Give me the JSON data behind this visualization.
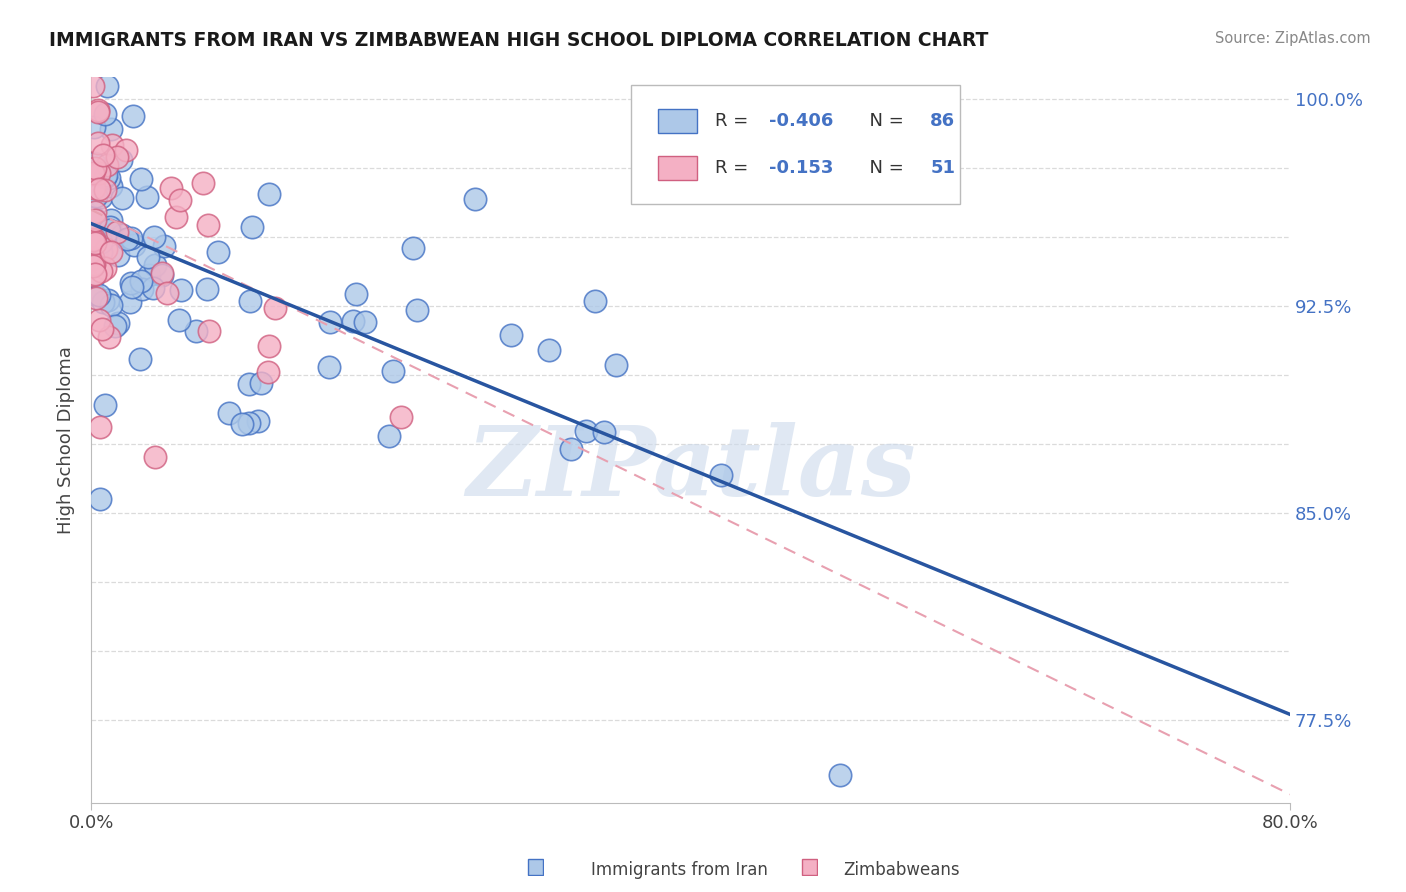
{
  "title": "IMMIGRANTS FROM IRAN VS ZIMBABWEAN HIGH SCHOOL DIPLOMA CORRELATION CHART",
  "source": "Source: ZipAtlas.com",
  "ylabel": "High School Diploma",
  "xlim": [
    0.0,
    0.8
  ],
  "ylim": [
    0.745,
    1.008
  ],
  "yticks": [
    0.775,
    0.8,
    0.825,
    0.85,
    0.875,
    0.9,
    0.925,
    0.95,
    0.975,
    1.0
  ],
  "ytick_labels": [
    "77.5%",
    "",
    "",
    "85.0%",
    "",
    "",
    "92.5%",
    "",
    "",
    "100.0%"
  ],
  "blue_dot_color": "#adc8e8",
  "blue_dot_edge": "#4472c4",
  "pink_dot_color": "#f4b0c4",
  "pink_dot_edge": "#d06080",
  "blue_line_color": "#2855a0",
  "pink_line_color": "#e8a0b0",
  "watermark": "ZIPatlas",
  "watermark_color": "#ccdaec",
  "blue_R": -0.406,
  "blue_N": 86,
  "pink_R": -0.153,
  "pink_N": 51,
  "blue_line_x0": 0.0,
  "blue_line_x1": 0.8,
  "blue_line_y0": 0.955,
  "blue_line_y1": 0.777,
  "pink_line_x0": 0.0,
  "pink_line_x1": 0.8,
  "pink_line_y0": 0.96,
  "pink_line_y1": 0.748,
  "background_color": "#ffffff",
  "grid_color": "#cccccc",
  "legend_blue_face": "#adc8e8",
  "legend_blue_edge": "#4472c4",
  "legend_pink_face": "#f4b0c4",
  "legend_pink_edge": "#d06080",
  "r_n_color": "#4472c4",
  "label_color": "#444444"
}
